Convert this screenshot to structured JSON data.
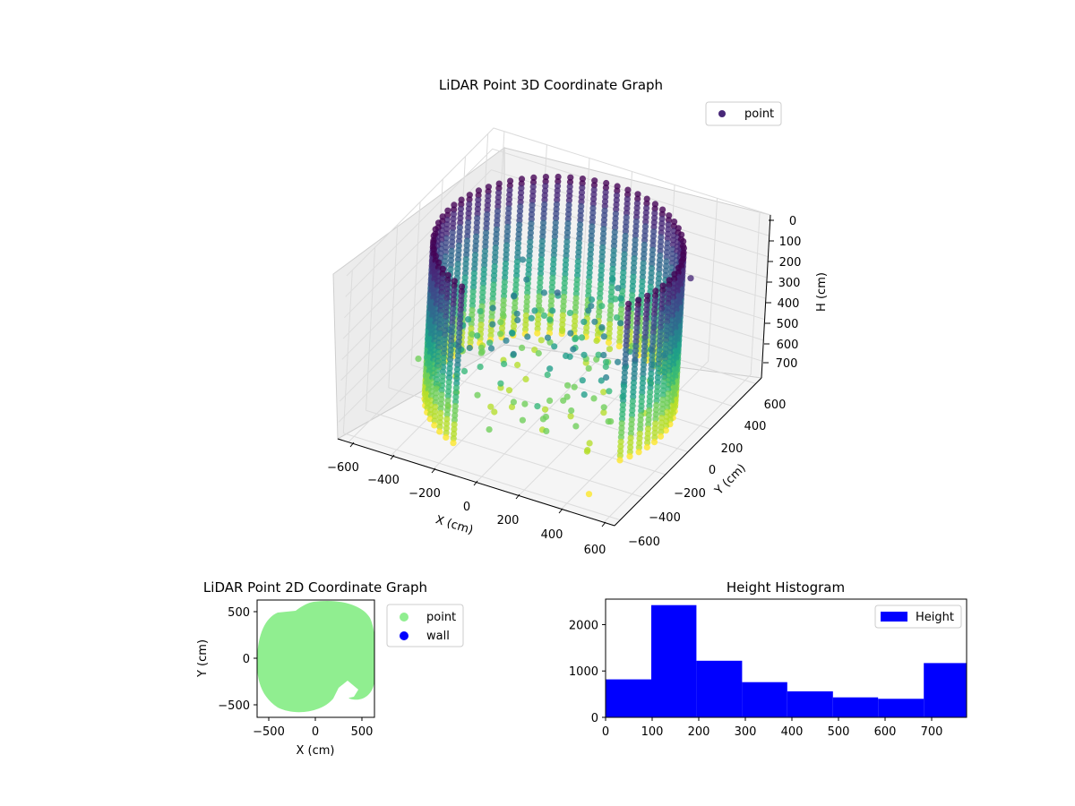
{
  "figure": {
    "colors": {
      "viridis": [
        "#440154",
        "#482878",
        "#3e4989",
        "#31688e",
        "#26828e",
        "#1f9e89",
        "#35b779",
        "#6ece58",
        "#b5de2b",
        "#fde725"
      ],
      "point_2d": "#90ee90",
      "wall": "#0000ff",
      "hist_bar": "#0000ff",
      "pane": "#f2f2f2",
      "grid": "#dcdcdc"
    }
  },
  "chart_data": [
    {
      "type": "scatter",
      "projection": "3d",
      "title": "LiDAR Point 3D Coordinate Graph",
      "xlabel": "X (cm)",
      "ylabel": "Y (cm)",
      "zlabel": "H (cm)",
      "x_ticks": [
        "−600",
        "−400",
        "−200",
        "0",
        "200",
        "400",
        "600"
      ],
      "y_ticks": [
        "−600",
        "−400",
        "−200",
        "0",
        "200",
        "400",
        "600"
      ],
      "z_ticks": [
        "0",
        "100",
        "200",
        "300",
        "400",
        "500",
        "600",
        "700"
      ],
      "xlim": [
        -650,
        650
      ],
      "ylim": [
        -650,
        650
      ],
      "zlim": [
        0,
        780
      ],
      "z_inverted": true,
      "colormap": "viridis",
      "color_by": "height",
      "legend": {
        "entries": [
          "point"
        ],
        "location": "upper-right"
      },
      "grid": true,
      "series": [
        {
          "name": "point",
          "shape": "ring",
          "radius_cm": 520,
          "height_range_cm": [
            0,
            760
          ],
          "open_arc_deg": [
            250,
            330
          ],
          "note_sample": [
            {
              "x": 460,
              "y": -520,
              "h": 760
            },
            {
              "x": -520,
              "y": -200,
              "h": 600
            },
            {
              "x": 520,
              "y": 200,
              "h": 100
            },
            {
              "x": 300,
              "y": -100,
              "h": 650
            }
          ]
        }
      ]
    },
    {
      "type": "scatter",
      "title": "LiDAR Point 2D Coordinate Graph",
      "xlabel": "X (cm)",
      "ylabel": "Y (cm)",
      "x_ticks": [
        "−500",
        "0",
        "500"
      ],
      "y_ticks": [
        "500",
        "0",
        "−500"
      ],
      "xlim": [
        -620,
        620
      ],
      "ylim": [
        -620,
        620
      ],
      "legend": {
        "entries": [
          "point",
          "wall"
        ],
        "location": "outside-right"
      },
      "series": [
        {
          "name": "point",
          "color": "#90ee90",
          "shape": "disc",
          "radius_cm": 600
        },
        {
          "name": "wall",
          "color": "#0000ff",
          "points": []
        }
      ]
    },
    {
      "type": "bar",
      "title": "Height Histogram",
      "legend": {
        "entries": [
          "Height"
        ],
        "location": "upper-right"
      },
      "x_ticks": [
        "0",
        "100",
        "200",
        "300",
        "400",
        "500",
        "600",
        "700"
      ],
      "y_ticks": [
        "0",
        "1000",
        "2000"
      ],
      "xlim": [
        0,
        775
      ],
      "ylim": [
        0,
        2550
      ],
      "bins": [
        {
          "start": 0,
          "end": 98,
          "count": 820
        },
        {
          "start": 98,
          "end": 195,
          "count": 2420
        },
        {
          "start": 195,
          "end": 293,
          "count": 1220
        },
        {
          "start": 293,
          "end": 390,
          "count": 760
        },
        {
          "start": 390,
          "end": 488,
          "count": 560
        },
        {
          "start": 488,
          "end": 585,
          "count": 430
        },
        {
          "start": 585,
          "end": 683,
          "count": 400
        },
        {
          "start": 683,
          "end": 775,
          "count": 1170
        }
      ],
      "series": [
        {
          "name": "Height"
        }
      ]
    }
  ]
}
